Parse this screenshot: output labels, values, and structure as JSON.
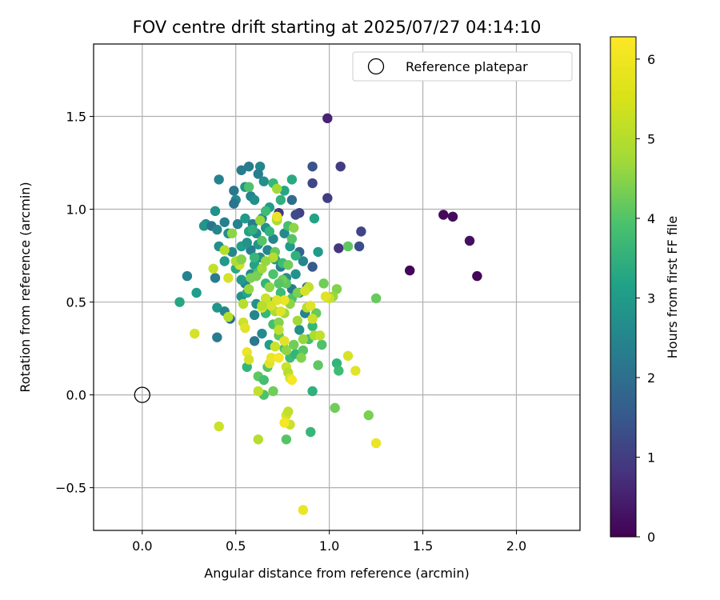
{
  "chart_data": {
    "type": "scatter",
    "title": "FOV centre drift starting at 2025/07/27 04:14:10",
    "xlabel": "Angular distance from reference (arcmin)",
    "ylabel": "Rotation from reference (arcmin)",
    "xlim": [
      -0.26,
      2.34
    ],
    "ylim": [
      -0.73,
      1.89
    ],
    "xticks": [
      0.0,
      0.5,
      1.0,
      1.5,
      2.0
    ],
    "xtick_labels": [
      "0.0",
      "0.5",
      "1.0",
      "1.5",
      "2.0"
    ],
    "yticks": [
      -0.5,
      0.0,
      0.5,
      1.0,
      1.5
    ],
    "ytick_labels": [
      "−0.5",
      "0.0",
      "0.5",
      "1.0",
      "1.5"
    ],
    "grid": true,
    "legend": {
      "position": "top-right",
      "entries": [
        "Reference platepar"
      ]
    },
    "reference_point": {
      "x": 0.0,
      "y": 0.0
    },
    "colorbar": {
      "label": "Hours from first FF file",
      "range": [
        0,
        6.28
      ],
      "ticks": [
        0,
        1,
        2,
        3,
        4,
        5,
        6
      ],
      "tick_labels": [
        "0",
        "1",
        "2",
        "3",
        "4",
        "5",
        "6"
      ],
      "colormap": "viridis"
    },
    "points": [
      [
        0.99,
        1.49,
        0.6
      ],
      [
        1.06,
        1.23,
        1.1
      ],
      [
        0.99,
        1.06,
        1.1
      ],
      [
        1.61,
        0.97,
        0.15
      ],
      [
        1.66,
        0.96,
        0.2
      ],
      [
        1.75,
        0.83,
        0.25
      ],
      [
        1.79,
        0.64,
        0.1
      ],
      [
        1.43,
        0.67,
        0.05
      ],
      [
        1.17,
        0.88,
        1.3
      ],
      [
        1.16,
        0.8,
        1.5
      ],
      [
        1.05,
        0.79,
        1.0
      ],
      [
        0.91,
        1.23,
        1.6
      ],
      [
        0.91,
        1.14,
        1.3
      ],
      [
        0.84,
        0.98,
        1.2
      ],
      [
        0.82,
        0.97,
        1.4
      ],
      [
        0.73,
        0.98,
        1.0
      ],
      [
        0.91,
        0.69,
        1.8
      ],
      [
        0.84,
        0.77,
        2.0
      ],
      [
        0.8,
        1.05,
        2.2
      ],
      [
        0.41,
        1.16,
        2.8
      ],
      [
        0.53,
        1.21,
        2.6
      ],
      [
        0.57,
        1.23,
        2.6
      ],
      [
        0.63,
        1.23,
        2.9
      ],
      [
        0.62,
        1.19,
        2.7
      ],
      [
        0.65,
        1.15,
        3.1
      ],
      [
        0.55,
        1.12,
        3.3
      ],
      [
        0.49,
        1.1,
        2.5
      ],
      [
        0.5,
        1.05,
        3.0
      ],
      [
        0.58,
        1.07,
        2.8
      ],
      [
        0.6,
        1.05,
        3.1
      ],
      [
        0.49,
        1.03,
        2.4
      ],
      [
        0.39,
        0.99,
        3.2
      ],
      [
        0.44,
        0.93,
        2.7
      ],
      [
        0.34,
        0.92,
        3.0
      ],
      [
        0.33,
        0.91,
        3.3
      ],
      [
        0.37,
        0.91,
        2.4
      ],
      [
        0.4,
        0.89,
        2.9
      ],
      [
        0.46,
        0.87,
        3.1
      ],
      [
        0.51,
        0.92,
        2.8
      ],
      [
        0.55,
        0.95,
        3.4
      ],
      [
        0.59,
        0.92,
        2.6
      ],
      [
        0.61,
        0.87,
        3.0
      ],
      [
        0.66,
        0.9,
        3.2
      ],
      [
        0.7,
        0.84,
        2.9
      ],
      [
        0.62,
        0.81,
        3.3
      ],
      [
        0.58,
        0.78,
        2.7
      ],
      [
        0.53,
        0.8,
        3.5
      ],
      [
        0.48,
        0.77,
        2.9
      ],
      [
        0.41,
        0.8,
        3.1
      ],
      [
        0.44,
        0.72,
        3.4
      ],
      [
        0.39,
        0.63,
        2.6
      ],
      [
        0.24,
        0.64,
        2.8
      ],
      [
        0.29,
        0.55,
        3.5
      ],
      [
        0.2,
        0.5,
        3.7
      ],
      [
        0.4,
        0.47,
        3.3
      ],
      [
        0.44,
        0.45,
        2.9
      ],
      [
        0.47,
        0.41,
        2.3
      ],
      [
        0.4,
        0.31,
        2.6
      ],
      [
        0.6,
        0.29,
        2.5
      ],
      [
        0.53,
        0.53,
        3.2
      ],
      [
        0.55,
        0.6,
        2.8
      ],
      [
        0.58,
        0.65,
        3.0
      ],
      [
        0.6,
        0.7,
        3.6
      ],
      [
        0.63,
        0.74,
        3.1
      ],
      [
        0.67,
        0.78,
        2.9
      ],
      [
        0.71,
        0.73,
        3.4
      ],
      [
        0.74,
        0.69,
        2.7
      ],
      [
        0.77,
        0.63,
        3.1
      ],
      [
        0.8,
        0.57,
        2.6
      ],
      [
        0.84,
        0.55,
        3.0
      ],
      [
        0.88,
        0.58,
        2.4
      ],
      [
        0.82,
        0.65,
        3.2
      ],
      [
        0.86,
        0.72,
        2.9
      ],
      [
        0.79,
        0.8,
        3.4
      ],
      [
        0.76,
        0.87,
        3.0
      ],
      [
        0.72,
        0.95,
        3.3
      ],
      [
        0.68,
        1.01,
        3.5
      ],
      [
        0.64,
        0.95,
        3.0
      ],
      [
        0.57,
        0.88,
        3.6
      ],
      [
        0.56,
        0.82,
        3.2
      ],
      [
        0.5,
        0.68,
        3.8
      ],
      [
        0.53,
        0.62,
        3.4
      ],
      [
        0.56,
        0.55,
        3.7
      ],
      [
        0.61,
        0.49,
        3.2
      ],
      [
        0.6,
        0.43,
        2.9
      ],
      [
        0.64,
        0.33,
        3.0
      ],
      [
        0.68,
        0.27,
        3.5
      ],
      [
        0.84,
        0.35,
        3.1
      ],
      [
        0.87,
        0.44,
        2.8
      ],
      [
        0.94,
        0.77,
        3.4
      ],
      [
        0.92,
        0.95,
        3.6
      ],
      [
        0.8,
        1.16,
        3.8
      ],
      [
        0.76,
        1.1,
        3.7
      ],
      [
        0.74,
        1.05,
        4.0
      ],
      [
        0.7,
        1.14,
        4.2
      ],
      [
        0.57,
        1.12,
        4.5
      ],
      [
        0.66,
        0.99,
        4.3
      ],
      [
        0.68,
        0.88,
        4.1
      ],
      [
        0.78,
        0.91,
        4.4
      ],
      [
        0.8,
        0.84,
        4.6
      ],
      [
        0.82,
        0.75,
        4.0
      ],
      [
        0.75,
        0.71,
        4.3
      ],
      [
        0.7,
        0.65,
        4.5
      ],
      [
        0.66,
        0.6,
        4.1
      ],
      [
        0.62,
        0.66,
        4.4
      ],
      [
        0.6,
        0.74,
        4.2
      ],
      [
        0.64,
        0.83,
        4.6
      ],
      [
        0.59,
        0.89,
        4.0
      ],
      [
        0.71,
        0.77,
        4.8
      ],
      [
        0.77,
        0.6,
        4.7
      ],
      [
        0.8,
        0.52,
        4.5
      ],
      [
        0.74,
        0.55,
        4.3
      ],
      [
        0.69,
        0.5,
        4.6
      ],
      [
        0.66,
        0.44,
        4.2
      ],
      [
        0.7,
        0.38,
        4.4
      ],
      [
        0.73,
        0.32,
        4.7
      ],
      [
        0.76,
        0.25,
        4.5
      ],
      [
        0.79,
        0.2,
        4.3
      ],
      [
        0.82,
        0.22,
        4.1
      ],
      [
        0.86,
        0.24,
        4.6
      ],
      [
        0.89,
        0.3,
        4.4
      ],
      [
        0.91,
        0.37,
        4.2
      ],
      [
        0.93,
        0.44,
        4.8
      ],
      [
        0.96,
        0.27,
        4.5
      ],
      [
        0.94,
        0.16,
        4.7
      ],
      [
        1.04,
        0.17,
        4.1
      ],
      [
        1.05,
        0.13,
        4.3
      ],
      [
        0.91,
        0.02,
        4.0
      ],
      [
        0.9,
        -0.2,
        4.2
      ],
      [
        0.77,
        -0.24,
        4.6
      ],
      [
        1.03,
        -0.07,
        4.9
      ],
      [
        1.21,
        -0.11,
        5.0
      ],
      [
        1.25,
        0.52,
        4.8
      ],
      [
        1.1,
        0.8,
        4.7
      ],
      [
        0.97,
        0.6,
        4.9
      ],
      [
        1.04,
        0.57,
        5.1
      ],
      [
        1.02,
        0.53,
        5.3
      ],
      [
        0.62,
        0.1,
        4.7
      ],
      [
        0.65,
        0.08,
        4.4
      ],
      [
        0.56,
        0.15,
        4.1
      ],
      [
        0.67,
        0.15,
        4.6
      ],
      [
        0.7,
        0.02,
        4.9
      ],
      [
        0.65,
        0.0,
        4.5
      ],
      [
        0.83,
        0.55,
        5.0
      ],
      [
        0.79,
        0.49,
        5.2
      ],
      [
        0.76,
        0.44,
        5.4
      ],
      [
        0.73,
        0.39,
        5.1
      ],
      [
        0.71,
        0.45,
        5.5
      ],
      [
        0.68,
        0.58,
        5.2
      ],
      [
        0.64,
        0.68,
        5.4
      ],
      [
        0.61,
        0.64,
        5.0
      ],
      [
        0.57,
        0.57,
        5.3
      ],
      [
        0.54,
        0.49,
        5.6
      ],
      [
        0.52,
        0.7,
        5.8
      ],
      [
        0.5,
        0.72,
        5.5
      ],
      [
        0.46,
        0.63,
        5.9
      ],
      [
        0.44,
        0.78,
        5.6
      ],
      [
        0.38,
        0.68,
        5.7
      ],
      [
        0.28,
        0.33,
        5.9
      ],
      [
        0.41,
        -0.17,
        5.8
      ],
      [
        0.46,
        0.42,
        5.6
      ],
      [
        0.54,
        0.39,
        5.8
      ],
      [
        0.55,
        0.36,
        6.0
      ],
      [
        0.56,
        0.23,
        6.1
      ],
      [
        0.57,
        0.19,
        5.9
      ],
      [
        0.62,
        -0.24,
        5.6
      ],
      [
        0.62,
        0.02,
        5.7
      ],
      [
        0.68,
        0.17,
        6.0
      ],
      [
        0.69,
        0.2,
        6.1
      ],
      [
        0.71,
        0.26,
        5.8
      ],
      [
        0.73,
        0.35,
        5.7
      ],
      [
        0.76,
        0.29,
        6.0
      ],
      [
        0.77,
        0.15,
        5.8
      ],
      [
        0.78,
        0.12,
        5.6
      ],
      [
        0.79,
        0.09,
        5.9
      ],
      [
        0.8,
        0.08,
        6.2
      ],
      [
        0.73,
        0.2,
        6.2
      ],
      [
        0.74,
        0.45,
        6.0
      ],
      [
        0.76,
        0.51,
        6.1
      ],
      [
        0.72,
        0.51,
        6.0
      ],
      [
        0.69,
        0.48,
        5.9
      ],
      [
        0.66,
        0.52,
        5.8
      ],
      [
        0.64,
        0.47,
        6.0
      ],
      [
        0.7,
        0.74,
        5.6
      ],
      [
        0.72,
        0.94,
        5.5
      ],
      [
        0.63,
        0.94,
        5.3
      ],
      [
        0.72,
        1.11,
        5.4
      ],
      [
        0.48,
        0.87,
        5.2
      ],
      [
        0.88,
        0.47,
        5.6
      ],
      [
        0.89,
        0.58,
        5.7
      ],
      [
        0.87,
        0.56,
        5.9
      ],
      [
        0.9,
        0.48,
        6.0
      ],
      [
        0.91,
        0.41,
        5.8
      ],
      [
        0.92,
        0.32,
        5.5
      ],
      [
        0.95,
        0.32,
        5.7
      ],
      [
        1.0,
        0.52,
        5.8
      ],
      [
        0.98,
        0.53,
        6.0
      ],
      [
        1.1,
        0.21,
        5.9
      ],
      [
        1.14,
        0.13,
        6.0
      ],
      [
        0.77,
        -0.11,
        5.9
      ],
      [
        0.78,
        -0.09,
        5.7
      ],
      [
        0.79,
        -0.16,
        5.8
      ],
      [
        0.86,
        -0.62,
        6.1
      ],
      [
        1.25,
        -0.26,
        6.1
      ],
      [
        0.76,
        -0.15,
        6.2
      ],
      [
        0.72,
        0.96,
        6.1
      ],
      [
        0.64,
        0.48,
        5.6
      ],
      [
        0.83,
        0.4,
        5.4
      ],
      [
        0.86,
        0.3,
        5.3
      ],
      [
        0.85,
        0.2,
        5.1
      ],
      [
        0.81,
        0.27,
        4.9
      ],
      [
        0.58,
        0.63,
        5.0
      ],
      [
        0.53,
        0.73,
        5.1
      ],
      [
        0.77,
        0.24,
        5.2
      ],
      [
        0.75,
        0.62,
        4.9
      ],
      [
        0.73,
        0.6,
        4.6
      ],
      [
        0.78,
        0.7,
        4.9
      ],
      [
        0.81,
        0.9,
        5.2
      ],
      [
        0.66,
        0.72,
        5.3
      ]
    ]
  }
}
